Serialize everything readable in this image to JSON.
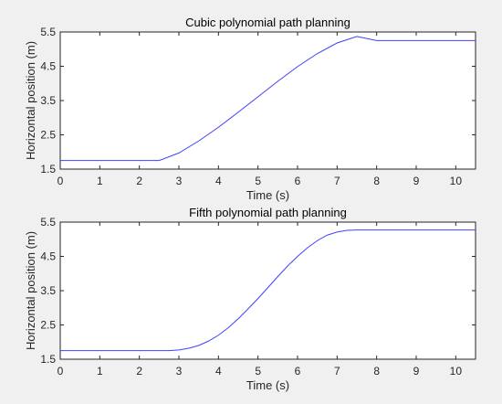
{
  "chart_data": [
    {
      "type": "line",
      "title": "Cubic polynomial path planning",
      "xlabel": "Time (s)",
      "ylabel": "Horizontal position (m)",
      "xlim": [
        0,
        10.5
      ],
      "ylim": [
        1.5,
        5.5
      ],
      "xticks": [
        0,
        1,
        2,
        3,
        4,
        5,
        6,
        7,
        8,
        9,
        10
      ],
      "yticks": [
        1.5,
        2.5,
        3.5,
        4.5,
        5.5
      ],
      "ytick_labels": [
        "1.5",
        "2.5",
        "3.5",
        "4.5",
        "5.5"
      ],
      "grid": false,
      "series": [
        {
          "color": "#4040ff",
          "x": [
            0,
            2.5,
            3.0,
            3.5,
            4.0,
            4.5,
            5.0,
            5.5,
            6.0,
            6.5,
            7.0,
            7.5,
            8.0,
            10.5
          ],
          "y": [
            1.75,
            1.75,
            1.97,
            2.32,
            2.72,
            3.16,
            3.61,
            4.06,
            4.49,
            4.87,
            5.18,
            5.37,
            5.25,
            5.25
          ]
        }
      ]
    },
    {
      "type": "line",
      "title": "Fifth polynomial path planning",
      "xlabel": "Time (s)",
      "ylabel": "Horizontal position (m)",
      "xlim": [
        0,
        10.5
      ],
      "ylim": [
        1.5,
        5.5
      ],
      "xticks": [
        0,
        1,
        2,
        3,
        4,
        5,
        6,
        7,
        8,
        9,
        10
      ],
      "yticks": [
        1.5,
        2.5,
        3.5,
        4.5,
        5.5
      ],
      "ytick_labels": [
        "1.5",
        "2.5",
        "3.5",
        "4.5",
        "5.5"
      ],
      "grid": false,
      "series": [
        {
          "color": "#4040ff",
          "x": [
            0,
            2.5,
            2.75,
            3.0,
            3.25,
            3.5,
            3.75,
            4.0,
            4.25,
            4.5,
            4.75,
            5.0,
            5.25,
            5.5,
            5.75,
            6.0,
            6.25,
            6.5,
            6.75,
            7.0,
            7.25,
            7.5,
            7.75,
            8.0,
            10.5
          ],
          "y": [
            1.75,
            1.75,
            1.75,
            1.77,
            1.82,
            1.9,
            2.03,
            2.2,
            2.42,
            2.68,
            2.97,
            3.27,
            3.59,
            3.91,
            4.22,
            4.5,
            4.75,
            4.96,
            5.12,
            5.21,
            5.26,
            5.27,
            5.27,
            5.27,
            5.27
          ]
        }
      ]
    }
  ]
}
